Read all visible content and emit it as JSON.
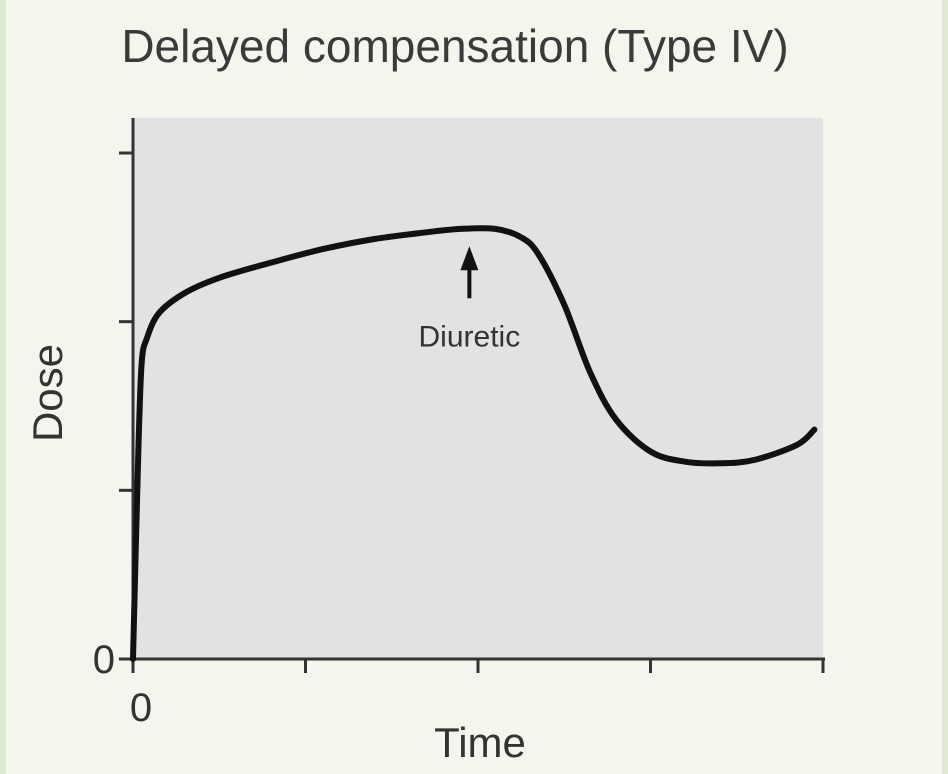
{
  "chart_data": {
    "type": "line",
    "title": "Delayed compensation (Type IV)",
    "xlabel": "Time",
    "ylabel": "Dose",
    "xlim": [
      0,
      4
    ],
    "ylim": [
      0,
      3
    ],
    "x_ticks": [
      0,
      1,
      2,
      3,
      4
    ],
    "y_ticks": [
      0,
      1,
      2,
      3
    ],
    "x_tick_labels": [
      "0",
      "",
      "",
      "",
      ""
    ],
    "y_tick_labels": [
      "0",
      "",
      "",
      ""
    ],
    "grid": false,
    "background_color": "#e2e2e2",
    "line_color": "#111111",
    "series": [
      {
        "x": [
          0.0,
          0.03,
          0.05,
          0.08,
          0.15,
          0.3,
          0.5,
          0.8,
          1.1,
          1.4,
          1.7,
          1.9,
          2.1,
          2.25,
          2.35,
          2.5,
          2.65,
          2.8,
          3.0,
          3.2,
          3.4,
          3.6,
          3.85,
          3.95
        ],
        "y": [
          0.0,
          1.2,
          1.75,
          1.9,
          2.05,
          2.17,
          2.26,
          2.35,
          2.43,
          2.49,
          2.53,
          2.55,
          2.55,
          2.5,
          2.4,
          2.1,
          1.7,
          1.42,
          1.23,
          1.17,
          1.16,
          1.18,
          1.27,
          1.36
        ]
      }
    ],
    "annotations": [
      {
        "text": "Diuretic",
        "x": 1.95,
        "y": 2.53,
        "arrow": "up"
      }
    ]
  }
}
